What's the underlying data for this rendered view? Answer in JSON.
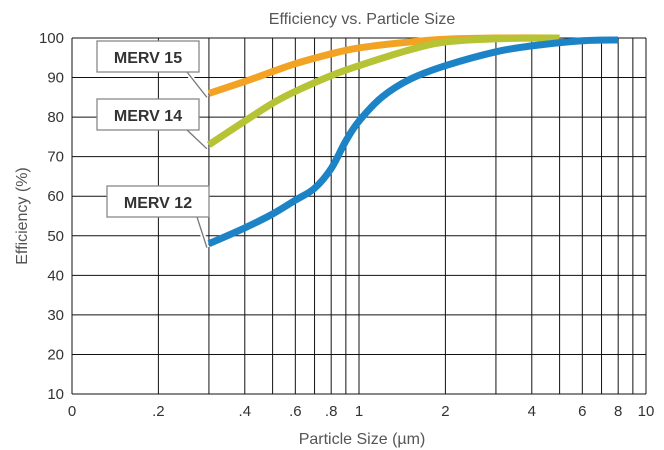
{
  "chart_data": {
    "type": "line",
    "title": "Efficiency vs. Particle Size",
    "xlabel": "Particle Size (µm)",
    "ylabel": "Efficiency (%)",
    "xscale": "log",
    "xlim": [
      0.1,
      10
    ],
    "ylim": [
      10,
      100
    ],
    "grid": true,
    "x_tick_labels": [
      "0",
      ".2",
      ".4",
      ".6",
      ".8",
      "1",
      "2",
      "4",
      "6",
      "8",
      "10"
    ],
    "y_tick_labels": [
      "10",
      "20",
      "30",
      "40",
      "50",
      "60",
      "70",
      "80",
      "90",
      "100"
    ],
    "series": [
      {
        "name": "MERV 15",
        "color": "#F2A324",
        "x": [
          0.3,
          0.4,
          0.5,
          0.6,
          0.8,
          1.0,
          1.5,
          2.0,
          3.0,
          5.0
        ],
        "y": [
          86,
          89,
          91.5,
          93.5,
          96,
          97.5,
          99,
          99.7,
          100,
          100
        ]
      },
      {
        "name": "MERV 14",
        "color": "#B5C334",
        "x": [
          0.3,
          0.4,
          0.5,
          0.6,
          0.8,
          1.0,
          1.5,
          2.0,
          3.0,
          5.0
        ],
        "y": [
          73,
          79,
          83.5,
          86.5,
          90.5,
          93,
          97,
          99,
          99.8,
          100
        ]
      },
      {
        "name": "MERV 12",
        "color": "#1C84C6",
        "x": [
          0.3,
          0.4,
          0.5,
          0.6,
          0.7,
          0.8,
          0.9,
          1.0,
          1.2,
          1.5,
          2.0,
          3.0,
          4.0,
          6.0,
          8.0
        ],
        "y": [
          48,
          52,
          55.5,
          59,
          62,
          67,
          74,
          79,
          85,
          89.5,
          93,
          96.5,
          98,
          99.3,
          99.5
        ]
      }
    ],
    "callouts": [
      {
        "label": "MERV 15",
        "series": 0
      },
      {
        "label": "MERV 14",
        "series": 1
      },
      {
        "label": "MERV 12",
        "series": 2
      }
    ]
  }
}
